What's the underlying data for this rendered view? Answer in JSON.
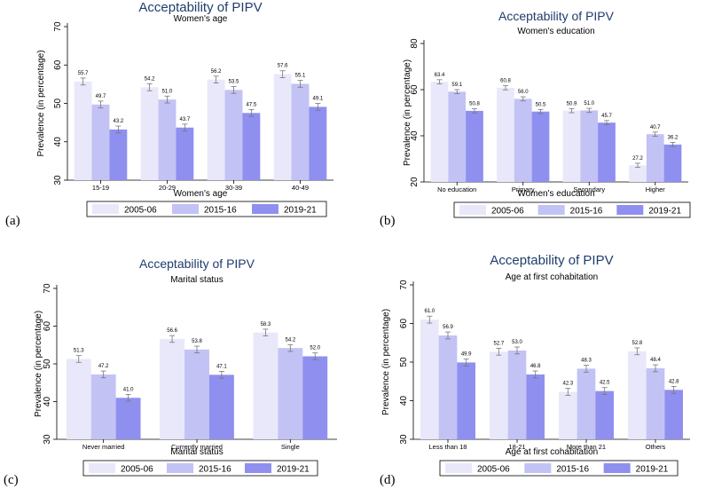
{
  "colors": {
    "s2005": "#e8e8fa",
    "s2015": "#c2c2f5",
    "s2019": "#8f8ff0",
    "title": "#1f3d6d"
  },
  "ylabel": "Prevalence (in percentage)",
  "legend": [
    "2005-06",
    "2015-16",
    "2019-21"
  ],
  "panels": [
    {
      "label": "(a)"
    },
    {
      "label": "(b)"
    },
    {
      "label": "(c)"
    },
    {
      "label": "(d)"
    }
  ],
  "chart_data": [
    {
      "type": "bar",
      "title": "Acceptability of PIPV",
      "subtitle": "Women's age",
      "xlabel": "Women's age",
      "ylabel": "Prevalence (in percentage)",
      "ylim": [
        30,
        70
      ],
      "yticks": [
        30,
        40,
        50,
        60,
        70
      ],
      "categories": [
        "15-19",
        "20-29",
        "30-39",
        "40-49"
      ],
      "series": [
        {
          "name": "2005-06",
          "values": [
            55.7,
            54.2,
            56.2,
            57.6
          ],
          "labels": [
            "55.7",
            "54.2",
            "56.2",
            "57.6"
          ]
        },
        {
          "name": "2015-16",
          "values": [
            49.7,
            51.0,
            53.5,
            55.1
          ],
          "labels": [
            "49.7",
            "51.0",
            "53.5",
            "55.1"
          ]
        },
        {
          "name": "2019-21",
          "values": [
            43.2,
            43.7,
            47.5,
            49.1
          ],
          "labels": [
            "43.2",
            "43.7",
            "47.5",
            "49.1"
          ]
        }
      ]
    },
    {
      "type": "bar",
      "title": "Acceptability of PIPV",
      "subtitle": "Women's education",
      "xlabel": "Women's education",
      "ylabel": "Prevalence (in percentage)",
      "ylim": [
        20,
        80
      ],
      "yticks": [
        20,
        40,
        60,
        80
      ],
      "categories": [
        "No education",
        "Primary",
        "Secondary",
        "Higher"
      ],
      "series": [
        {
          "name": "2005-06",
          "values": [
            63.4,
            60.8,
            50.9,
            27.2
          ],
          "labels": [
            "63.4",
            "60.8",
            "50.9",
            "27.2"
          ]
        },
        {
          "name": "2015-16",
          "values": [
            59.1,
            56.0,
            51.0,
            40.7
          ],
          "labels": [
            "59.1",
            "56.0",
            "51.0",
            "40.7"
          ]
        },
        {
          "name": "2019-21",
          "values": [
            50.8,
            50.5,
            45.7,
            36.2
          ],
          "labels": [
            "50.8",
            "50.5",
            "45.7",
            "36.2"
          ]
        }
      ]
    },
    {
      "type": "bar",
      "title": "Acceptability of PIPV",
      "subtitle": "Marital status",
      "xlabel": "Marital status",
      "ylabel": "Prevalence (in percentage)",
      "ylim": [
        30,
        70
      ],
      "yticks": [
        30,
        40,
        50,
        60,
        70
      ],
      "categories": [
        "Never married",
        "Currently married",
        "Single"
      ],
      "series": [
        {
          "name": "2005-06",
          "values": [
            51.3,
            56.6,
            58.3
          ],
          "labels": [
            "51.3",
            "56.6",
            "58.3"
          ]
        },
        {
          "name": "2015-16",
          "values": [
            47.2,
            53.8,
            54.2
          ],
          "labels": [
            "47.2",
            "53.8",
            "54.2"
          ]
        },
        {
          "name": "2019-21",
          "values": [
            41.0,
            47.1,
            52.0
          ],
          "labels": [
            "41.0",
            "47.1",
            "52.0"
          ]
        }
      ]
    },
    {
      "type": "bar",
      "title": "Acceptability of PIPV",
      "subtitle": "Age at first cohabitation",
      "xlabel": "Age at first cohabitation",
      "ylabel": "Prevalence (in percentage)",
      "ylim": [
        30,
        70
      ],
      "yticks": [
        30,
        40,
        50,
        60,
        70
      ],
      "categories": [
        "Less than 18",
        "18-21",
        "More than 21",
        "Others"
      ],
      "series": [
        {
          "name": "2005-06",
          "values": [
            61.0,
            52.7,
            42.3,
            52.8
          ],
          "labels": [
            "61.0",
            "52.7",
            "42.3",
            "52.8"
          ]
        },
        {
          "name": "2015-16",
          "values": [
            56.9,
            53.0,
            48.3,
            48.4
          ],
          "labels": [
            "56.9",
            "53.0",
            "48.3",
            "48.4"
          ]
        },
        {
          "name": "2019-21",
          "values": [
            49.9,
            46.8,
            42.5,
            42.8
          ],
          "labels": [
            "49.9",
            "46.8",
            "42.5",
            "42.8"
          ]
        }
      ]
    }
  ]
}
